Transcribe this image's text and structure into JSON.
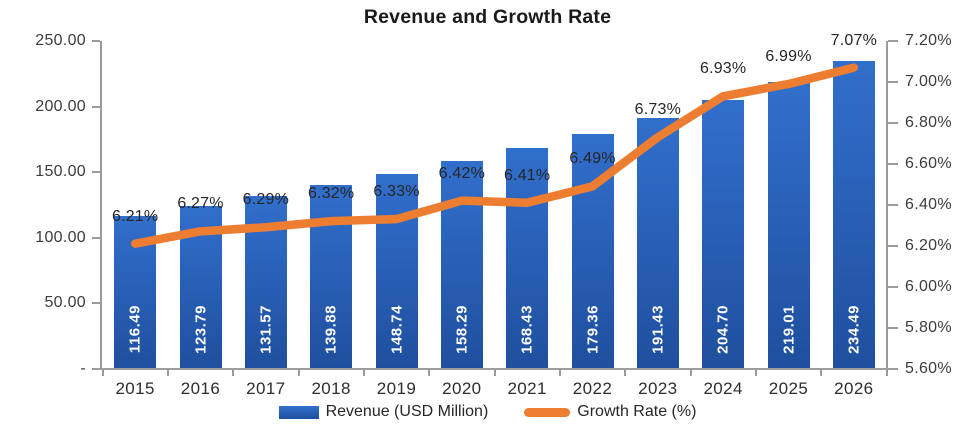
{
  "chart_data": {
    "type": "combo",
    "title": "Revenue and Growth Rate",
    "categories": [
      "2015",
      "2016",
      "2017",
      "2018",
      "2019",
      "2020",
      "2021",
      "2022",
      "2023",
      "2024",
      "2025",
      "2026"
    ],
    "series": [
      {
        "name": "Revenue (USD Million)",
        "type": "bar",
        "axis": "left",
        "values": [
          116.49,
          123.79,
          131.57,
          139.88,
          148.74,
          158.29,
          168.43,
          179.36,
          191.43,
          204.7,
          219.01,
          234.49
        ],
        "data_labels": [
          "116.49",
          "123.79",
          "131.57",
          "139.88",
          "148.74",
          "158.29",
          "168.43",
          "179.36",
          "191.43",
          "204.70",
          "219.01",
          "234.49"
        ],
        "color_top": "#316FCC",
        "color_bottom": "#1F4F9E"
      },
      {
        "name": "Growth Rate (%)",
        "type": "line",
        "axis": "right",
        "values": [
          6.21,
          6.27,
          6.29,
          6.32,
          6.33,
          6.42,
          6.41,
          6.49,
          6.73,
          6.93,
          6.99,
          7.07
        ],
        "data_labels": [
          "6.21%",
          "6.27%",
          "6.29%",
          "6.32%",
          "6.33%",
          "6.42%",
          "6.41%",
          "6.49%",
          "6.73%",
          "6.93%",
          "6.99%",
          "7.07%"
        ],
        "color": "#ED7D31"
      }
    ],
    "left_axis": {
      "min": 0,
      "max": 250,
      "tick_labels": [
        "250.00",
        "200.00",
        "150.00",
        "100.00",
        "50.00",
        "-"
      ]
    },
    "right_axis": {
      "min": 5.6,
      "max": 7.2,
      "tick_labels": [
        "7.20%",
        "7.00%",
        "6.80%",
        "6.60%",
        "6.40%",
        "6.20%",
        "6.00%",
        "5.80%",
        "5.60%"
      ]
    },
    "grid": false,
    "axis_color": "#9B9B9B",
    "label_color": "#262626",
    "legend": {
      "position": "bottom",
      "items": [
        {
          "label": "Revenue (USD Million)",
          "marker": "bar"
        },
        {
          "label": "Growth Rate (%)",
          "marker": "line"
        }
      ]
    }
  }
}
